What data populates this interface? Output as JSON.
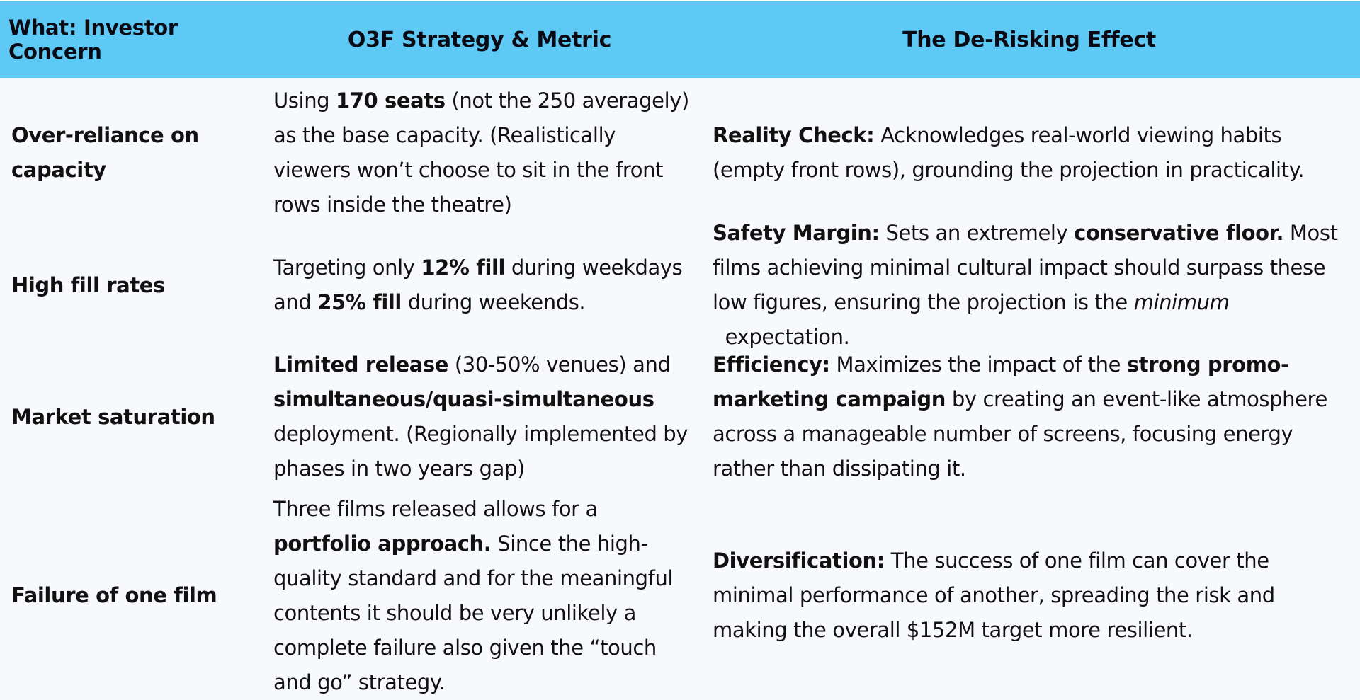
{
  "header": {
    "col1": "What: Investor Concern",
    "col2": "O3F Strategy & Metric",
    "col3": "The De-Risking Effect"
  },
  "rows": [
    {
      "concern": "Over-reliance on capacity",
      "strategy": {
        "t1": "Using ",
        "b1": "170 seats",
        "t2": " (not the 250 averagely) as the base capacity. (Realistically viewers won’t choose to sit in the front rows inside the theatre)"
      },
      "effect": {
        "label": "Reality Check:",
        "t1": " Acknowledges real-world viewing habits (empty front rows), grounding the projection in practicality."
      }
    },
    {
      "concern": "High fill rates",
      "strategy": {
        "t1": "Targeting only ",
        "b1": "12% fill",
        "t2": " during weekdays and ",
        "b2": "25% fill",
        "t3": " during weekends."
      },
      "effect": {
        "label": "Safety Margin:",
        "t1": " Sets an extremely ",
        "b1": "conservative floor.",
        "t2": " Most films achieving minimal cultural impact should surpass these low figures, ensuring the projection is the ",
        "i1": "minimum",
        "t3": "  expectation."
      }
    },
    {
      "concern": "Market saturation",
      "strategy": {
        "b1": "Limited release",
        "t1": " (30-50% venues) and ",
        "b2": "simultaneous/quasi-simultaneous",
        "t2": " deployment. (Regionally implemented by phases in two years gap)"
      },
      "effect": {
        "label": "Efficiency:",
        "t1": " Maximizes the impact of the ",
        "b1": "strong promo-marketing campaign",
        "t2": " by creating an event-like atmosphere across a manageable number of screens, focusing energy rather than dissipating it."
      }
    },
    {
      "concern": "Failure of one film",
      "strategy": {
        "t1": "Three films released allows for a ",
        "b1": "portfolio approach.",
        "t2": " Since the high-quality standard and for the meaningful contents it should be very unlikely a complete failure also given the “touch and go” strategy."
      },
      "effect": {
        "label": "Diversification:",
        "t1": " The success of one film can cover the minimal performance of another, spreading the risk and making the overall $152M target more resilient."
      }
    }
  ]
}
